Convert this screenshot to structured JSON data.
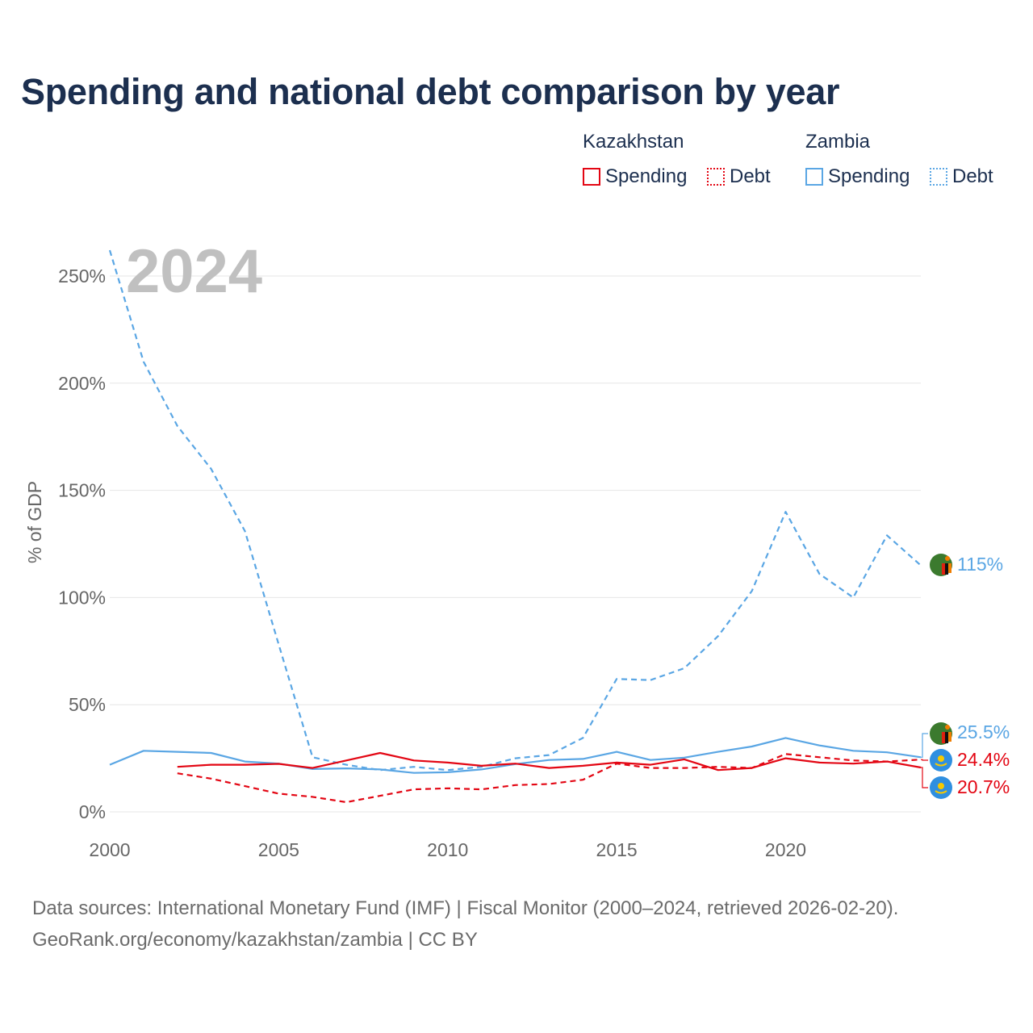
{
  "title": "Spending and national debt comparison by year",
  "legend": {
    "kazakhstan": {
      "country": "Kazakhstan",
      "spending": "Spending",
      "debt": "Debt"
    },
    "zambia": {
      "country": "Zambia",
      "spending": "Spending",
      "debt": "Debt"
    }
  },
  "colors": {
    "kazakhstan": "#e30613",
    "zambia": "#5aa6e4",
    "title": "#1c2f4f",
    "grid": "#e6e6e6",
    "axis_text": "#666666",
    "year_watermark": "#c0c0c0"
  },
  "footer": {
    "line1": "Data sources: International Monetary Fund (IMF) | Fiscal Monitor (2000–2024, retrieved 2026-02-20).",
    "line2": "GeoRank.org/economy/kazakhstan/zambia | CC BY"
  },
  "chart_data": {
    "type": "line",
    "watermark_year": "2024",
    "ylabel": "% of GDP",
    "xlabel": "",
    "ylim": [
      0,
      260
    ],
    "xlim": [
      2000,
      2024
    ],
    "yticks": [
      0,
      50,
      100,
      150,
      200,
      250
    ],
    "ytick_labels": [
      "0%",
      "50%",
      "100%",
      "150%",
      "200%",
      "250%"
    ],
    "xticks": [
      2000,
      2005,
      2010,
      2015,
      2020
    ],
    "xtick_labels": [
      "2000",
      "2005",
      "2010",
      "2015",
      "2020"
    ],
    "series": [
      {
        "name": "Zambia Debt",
        "country": "zambia",
        "style": "dashed",
        "x": [
          2000,
          2001,
          2002,
          2003,
          2004,
          2005,
          2006,
          2007,
          2008,
          2009,
          2010,
          2011,
          2012,
          2013,
          2014,
          2015,
          2016,
          2017,
          2018,
          2019,
          2020,
          2021,
          2022,
          2023,
          2024
        ],
        "values": [
          262,
          210,
          180,
          160,
          131,
          78,
          25.5,
          22,
          19.5,
          21,
          19.5,
          21,
          25,
          26.5,
          34.5,
          62,
          61.5,
          67,
          82,
          103,
          140,
          111,
          100,
          129,
          115
        ]
      },
      {
        "name": "Zambia Spending",
        "country": "zambia",
        "style": "solid",
        "x": [
          2000,
          2001,
          2002,
          2003,
          2004,
          2005,
          2006,
          2007,
          2008,
          2009,
          2010,
          2011,
          2012,
          2013,
          2014,
          2015,
          2016,
          2017,
          2018,
          2019,
          2020,
          2021,
          2022,
          2023,
          2024
        ],
        "values": [
          22,
          28.5,
          28,
          27.5,
          23.5,
          22.5,
          20,
          20.3,
          19.8,
          18.2,
          18.5,
          19.8,
          22.3,
          24.2,
          24.7,
          28,
          24.2,
          25.3,
          28,
          30.5,
          34.5,
          31,
          28.5,
          27.8,
          25.5
        ]
      },
      {
        "name": "Kazakhstan Spending",
        "country": "kazakhstan",
        "style": "solid",
        "x": [
          2002,
          2003,
          2004,
          2005,
          2006,
          2007,
          2008,
          2009,
          2010,
          2011,
          2012,
          2013,
          2014,
          2015,
          2016,
          2017,
          2018,
          2019,
          2020,
          2021,
          2022,
          2023,
          2024
        ],
        "values": [
          21,
          22,
          22,
          22.4,
          20.5,
          24,
          27.5,
          24,
          23,
          21.5,
          22.5,
          20.5,
          21.5,
          23,
          22,
          24.5,
          19.5,
          20.5,
          25,
          23,
          22.5,
          23.5,
          20.7
        ]
      },
      {
        "name": "Kazakhstan Debt",
        "country": "kazakhstan",
        "style": "dashed",
        "x": [
          2002,
          2003,
          2004,
          2005,
          2006,
          2007,
          2008,
          2009,
          2010,
          2011,
          2012,
          2013,
          2014,
          2015,
          2016,
          2017,
          2018,
          2019,
          2020,
          2021,
          2022,
          2023,
          2024
        ],
        "values": [
          18,
          15.5,
          12,
          8.5,
          7,
          4.5,
          7.5,
          10.5,
          11,
          10.5,
          12.5,
          13,
          15,
          22.5,
          20.5,
          20.5,
          21,
          20.5,
          27,
          25.5,
          24,
          23.5,
          24.4
        ]
      }
    ],
    "end_labels": [
      {
        "text": "115%",
        "country": "zambia",
        "value": 115
      },
      {
        "text": "25.5%",
        "country": "zambia",
        "value": 25.5
      },
      {
        "text": "24.4%",
        "country": "kazakhstan",
        "value": 24.4
      },
      {
        "text": "20.7%",
        "country": "kazakhstan",
        "value": 20.7
      }
    ]
  }
}
